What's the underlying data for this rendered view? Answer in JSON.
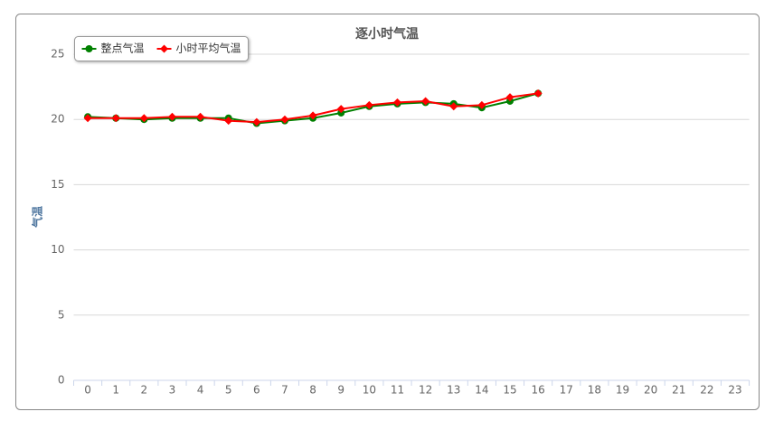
{
  "chart_data": {
    "type": "line",
    "title": "逐小时气温",
    "y_label": "气温",
    "categories": [
      "0",
      "1",
      "2",
      "3",
      "4",
      "5",
      "6",
      "7",
      "8",
      "9",
      "10",
      "11",
      "12",
      "13",
      "14",
      "15",
      "16",
      "17",
      "18",
      "19",
      "20",
      "21",
      "22",
      "23"
    ],
    "series": [
      {
        "name": "整点气温",
        "color": "#008000",
        "marker": "circle",
        "values": [
          20.2,
          20.1,
          20.0,
          20.1,
          20.1,
          20.1,
          19.7,
          19.9,
          20.1,
          20.5,
          21.0,
          21.2,
          21.3,
          21.2,
          20.9,
          21.4,
          22.0,
          null,
          null,
          null,
          null,
          null,
          null,
          null
        ]
      },
      {
        "name": "小时平均气温",
        "color": "#ff0000",
        "marker": "diamond",
        "values": [
          20.1,
          20.1,
          20.1,
          20.2,
          20.2,
          19.9,
          19.8,
          20.0,
          20.3,
          20.8,
          21.1,
          21.3,
          21.4,
          21.0,
          21.1,
          21.7,
          22.0,
          null,
          null,
          null,
          null,
          null,
          null,
          null
        ]
      }
    ],
    "ylim": [
      0,
      25
    ],
    "yticks": [
      0,
      5,
      10,
      15,
      20,
      25
    ],
    "grid": true,
    "legend": "top-left"
  }
}
